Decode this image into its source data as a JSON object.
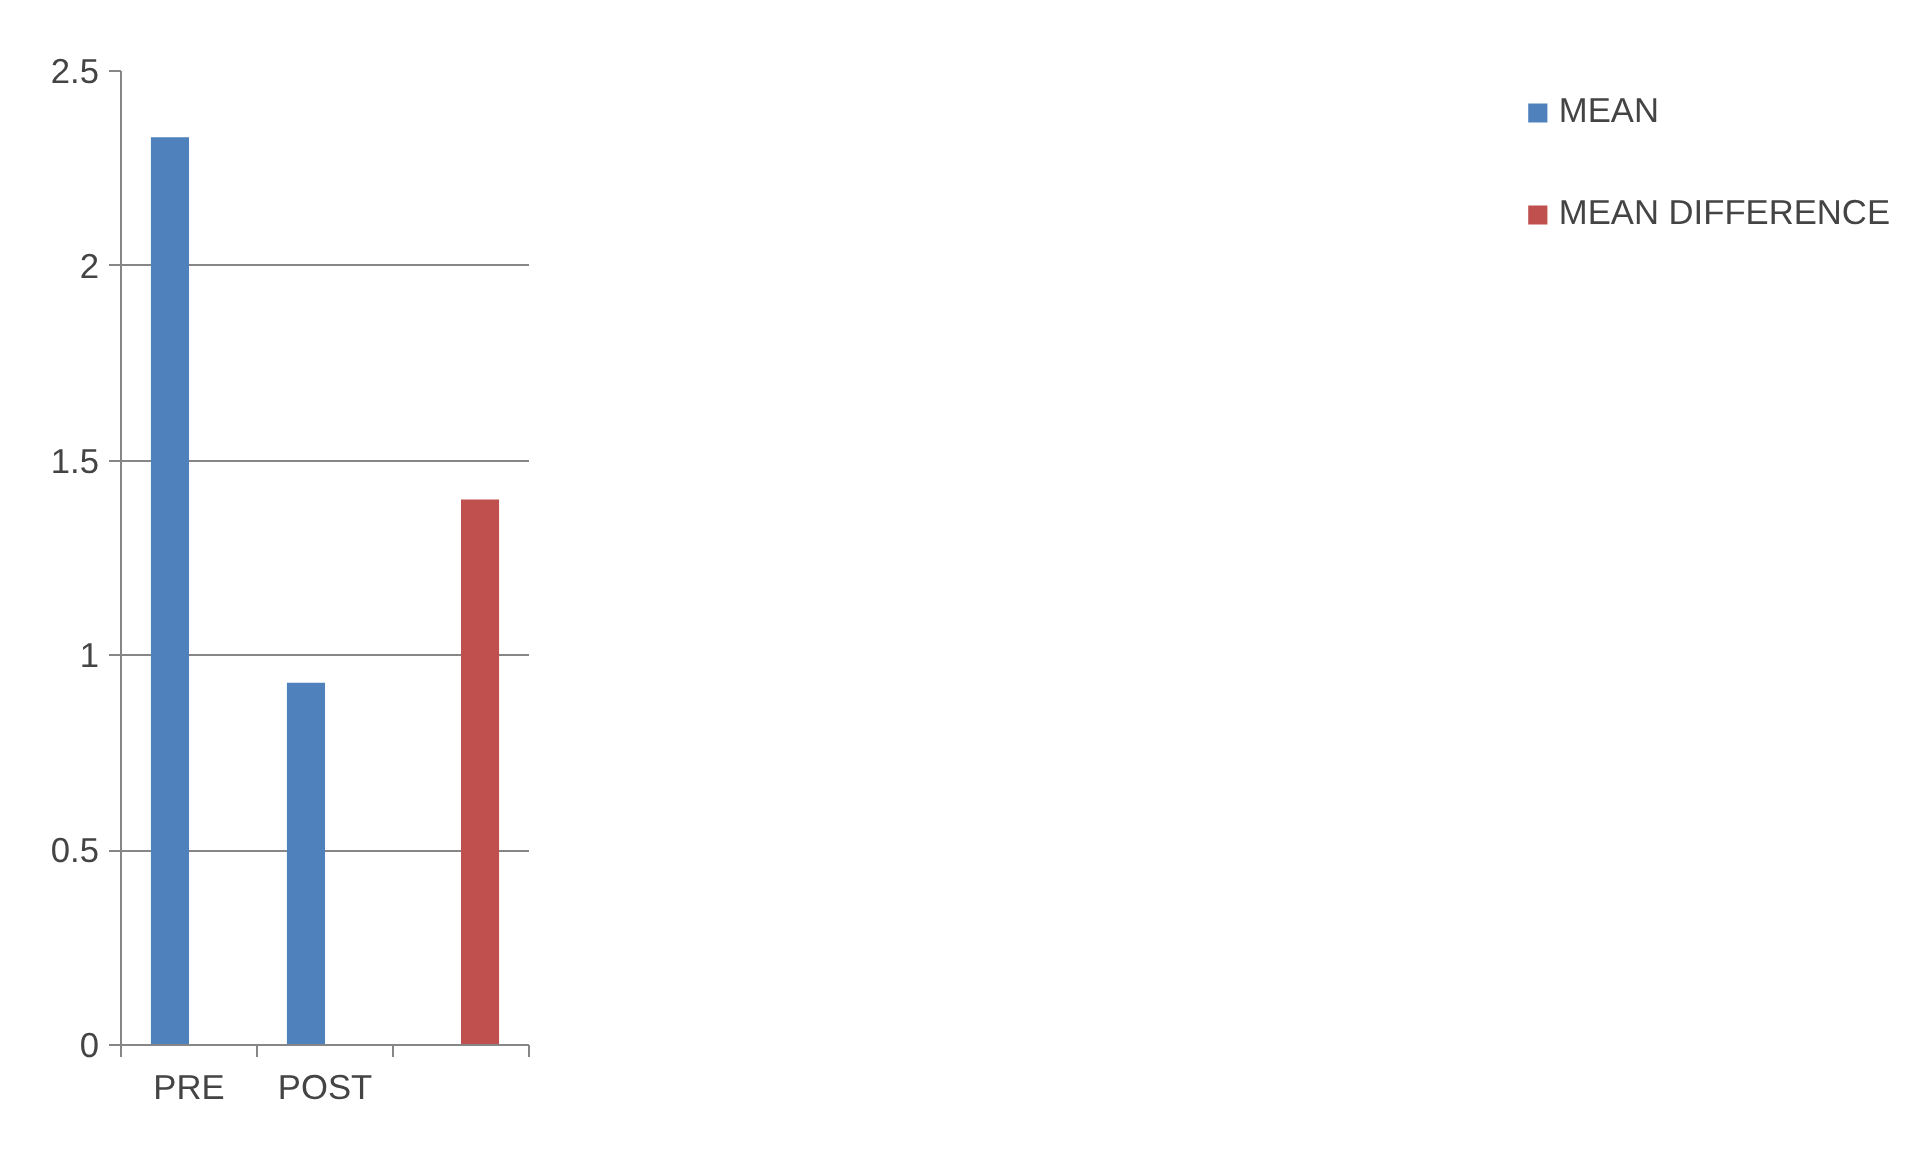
{
  "chart_data": {
    "type": "bar",
    "categories": [
      "PRE",
      "POST",
      null
    ],
    "series": [
      {
        "name": "MEAN",
        "color": "#4f81bd",
        "values": [
          2.33,
          0.93,
          null
        ]
      },
      {
        "name": "MEAN DIFFERENCE",
        "color": "#c0504d",
        "values": [
          null,
          null,
          1.4
        ]
      }
    ],
    "ylim": [
      0,
      2.5
    ],
    "yticks": [
      0,
      0.5,
      1,
      1.5,
      2,
      2.5
    ],
    "grid": "y",
    "legend": "right"
  }
}
